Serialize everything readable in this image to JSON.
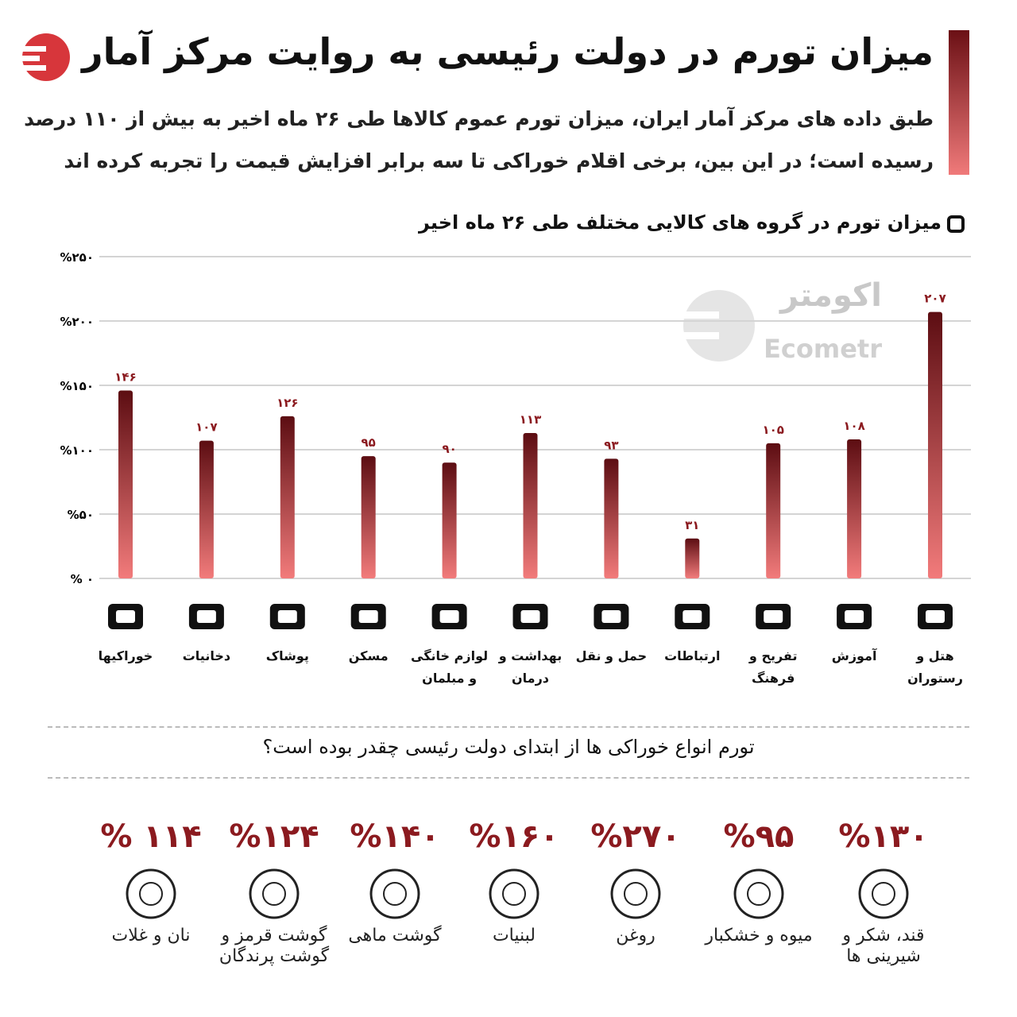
{
  "header": {
    "title": "میزان تورم در دولت رئیسی به روایت مرکز آمار",
    "subtitle_lines": [
      "طبق داده های مرکز آمار ایران، میزان تورم عموم کالاها طی ۲۶ ماه اخیر به بیش از ۱۱۰ درصد",
      "رسیده است؛ در این بین، برخی اقلام خوراکی تا سه برابر افزایش قیمت را تجربه کرده اند"
    ]
  },
  "watermark": {
    "fa": "اکومتر",
    "en": "Ecometr"
  },
  "chart_data": {
    "type": "bar",
    "title": "میزان تورم در گروه های کالایی مختلف طی ۲۶ ماه اخیر",
    "categories": [
      "خوراکیها",
      "دخانیات",
      "پوشاک",
      "مسکن",
      "لوازم خانگی و مبلمان",
      "بهداشت و درمان",
      "حمل و نقل",
      "ارتباطات",
      "تفریح و فرهنگ",
      "آموزش",
      "هتل و رستوران"
    ],
    "values": [
      146,
      107,
      126,
      95,
      90,
      113,
      93,
      31,
      105,
      108,
      207
    ],
    "value_labels": [
      "۱۴۶",
      "۱۰۷",
      "۱۲۶",
      "۹۵",
      "۹۰",
      "۱۱۳",
      "۹۳",
      "۳۱",
      "۱۰۵",
      "۱۰۸",
      "۲۰۷"
    ],
    "color": "#b8323a",
    "ylim": [
      0,
      250
    ],
    "yticks": [
      {
        "value": 0,
        "label": "% ۰"
      },
      {
        "value": 50,
        "label": "%۵۰"
      },
      {
        "value": 100,
        "label": "%۱۰۰"
      },
      {
        "value": 150,
        "label": "%۱۵۰"
      },
      {
        "value": 200,
        "label": "%۲۰۰"
      },
      {
        "value": 250,
        "label": "%۲۵۰"
      }
    ],
    "grid": true
  },
  "food": {
    "title": "تورم انواع خوراکی ها از ابتدای دولت رئیسی چقدر بوده است؟",
    "items": [
      {
        "percent": "% ۱۱۴",
        "name": "نان و غلات"
      },
      {
        "percent": "%۱۲۴",
        "name": "گوشت قرمز و گوشت پرندگان"
      },
      {
        "percent": "%۱۴۰",
        "name": "گوشت ماهی"
      },
      {
        "percent": "%۱۶۰",
        "name": "لبنیات"
      },
      {
        "percent": "%۲۷۰",
        "name": "روغن"
      },
      {
        "percent": "%۹۵",
        "name": "میوه و خشکبار"
      },
      {
        "percent": "%۱۳۰",
        "name": "قند، شکر و شیرینی ها"
      }
    ]
  }
}
